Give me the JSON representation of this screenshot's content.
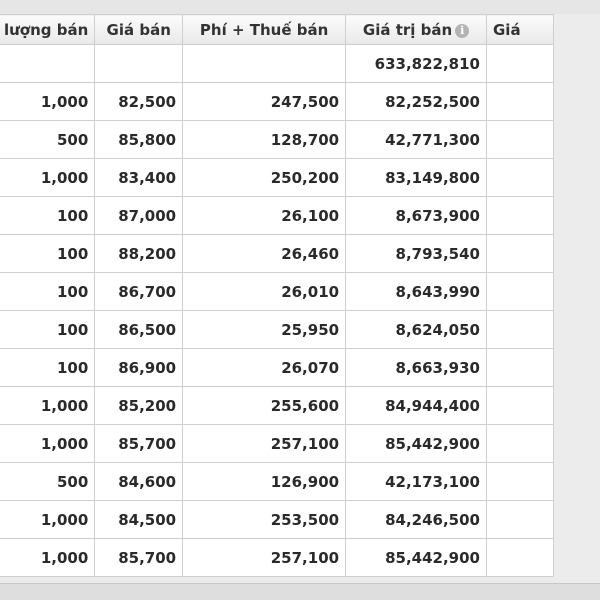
{
  "table": {
    "headers": {
      "col1": "Khối lượng bán",
      "col2": "Giá bán",
      "col3": "Phí + Thuế bán",
      "col4": "Giá trị bán",
      "col5": "Giá"
    },
    "total": {
      "value": "633,822,810"
    },
    "rows": [
      {
        "qty": "1,000",
        "price": "82,500",
        "fee": "247,500",
        "value": "82,252,500"
      },
      {
        "qty": "500",
        "price": "85,800",
        "fee": "128,700",
        "value": "42,771,300"
      },
      {
        "qty": "1,000",
        "price": "83,400",
        "fee": "250,200",
        "value": "83,149,800"
      },
      {
        "qty": "100",
        "price": "87,000",
        "fee": "26,100",
        "value": "8,673,900"
      },
      {
        "qty": "100",
        "price": "88,200",
        "fee": "26,460",
        "value": "8,793,540"
      },
      {
        "qty": "100",
        "price": "86,700",
        "fee": "26,010",
        "value": "8,643,990"
      },
      {
        "qty": "100",
        "price": "86,500",
        "fee": "25,950",
        "value": "8,624,050"
      },
      {
        "qty": "100",
        "price": "86,900",
        "fee": "26,070",
        "value": "8,663,930"
      },
      {
        "qty": "1,000",
        "price": "85,200",
        "fee": "255,600",
        "value": "84,944,400"
      },
      {
        "qty": "1,000",
        "price": "85,700",
        "fee": "257,100",
        "value": "85,442,900"
      },
      {
        "qty": "500",
        "price": "84,600",
        "fee": "126,900",
        "value": "42,173,100"
      },
      {
        "qty": "1,000",
        "price": "84,500",
        "fee": "253,500",
        "value": "84,246,500"
      },
      {
        "qty": "1,000",
        "price": "85,700",
        "fee": "257,100",
        "value": "85,442,900"
      }
    ],
    "info_icon": "info-icon"
  }
}
